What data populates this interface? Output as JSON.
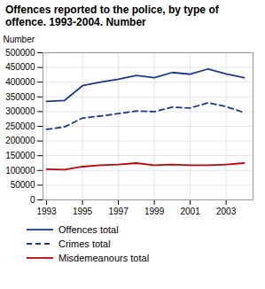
{
  "chart_data": {
    "type": "line",
    "title": "Offences reported to the police, by type of\noffence. 1993-2004. Number",
    "ylabel": "Number",
    "x": [
      1993,
      1994,
      1995,
      1996,
      1997,
      1998,
      1999,
      2000,
      2001,
      2002,
      2003,
      2004
    ],
    "series": [
      {
        "name": "Offences total",
        "color": "#1a3a8c",
        "line_style": "solid",
        "values": [
          335000,
          338000,
          388000,
          400000,
          410000,
          423000,
          415000,
          433000,
          427000,
          445000,
          428000,
          415000
        ]
      },
      {
        "name": "Crimes total",
        "color": "#1a3a8c",
        "line_style": "dashed",
        "values": [
          240000,
          248000,
          278000,
          285000,
          293000,
          302000,
          300000,
          315000,
          312000,
          330000,
          317000,
          297000
        ]
      },
      {
        "name": "Misdemeanours total",
        "color": "#c0000c",
        "line_style": "solid",
        "values": [
          104000,
          103000,
          113000,
          118000,
          120000,
          125000,
          118000,
          120000,
          118000,
          118000,
          120000,
          125000
        ]
      }
    ],
    "xlim": [
      1992.8,
      2004.5
    ],
    "xticks": [
      1993,
      1995,
      1997,
      1999,
      2001,
      2003
    ],
    "ylim": [
      0,
      500000
    ],
    "yticks": [
      0,
      50000,
      100000,
      150000,
      200000,
      250000,
      300000,
      350000,
      400000,
      450000,
      500000
    ],
    "grid": true,
    "legend": "bottom"
  }
}
